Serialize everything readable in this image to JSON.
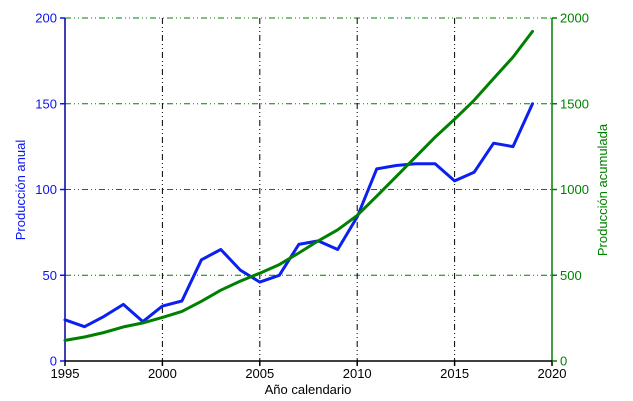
{
  "chart_data": {
    "type": "line",
    "x": [
      1995,
      1996,
      1997,
      1998,
      1999,
      2000,
      2001,
      2002,
      2003,
      2004,
      2005,
      2006,
      2007,
      2008,
      2009,
      2010,
      2011,
      2012,
      2013,
      2014,
      2015,
      2016,
      2017,
      2018,
      2019
    ],
    "series": [
      {
        "name": "Producción anual",
        "axis": "left",
        "color": "#0b20f0",
        "width": 3,
        "values": [
          24,
          20,
          26,
          33,
          23,
          32,
          35,
          59,
          65,
          53,
          46,
          50,
          68,
          70,
          65,
          84,
          112,
          114,
          115,
          115,
          105,
          110,
          127,
          125,
          150
        ]
      },
      {
        "name": "Producción acumulada",
        "axis": "right",
        "color": "#008000",
        "width": 3,
        "values": [
          120,
          140,
          166,
          199,
          222,
          254,
          289,
          348,
          413,
          466,
          512,
          562,
          630,
          700,
          765,
          849,
          961,
          1075,
          1190,
          1305,
          1410,
          1520,
          1647,
          1772,
          1922
        ]
      }
    ],
    "x_axis": {
      "label": "Año calendario",
      "min": 1995,
      "max": 2020,
      "ticks": [
        1995,
        2000,
        2005,
        2010,
        2015,
        2020
      ],
      "color": "#000000"
    },
    "left_axis": {
      "label": "Producción anual",
      "min": 0,
      "max": 200,
      "ticks": [
        0,
        50,
        100,
        150,
        200
      ],
      "color": "#0a14f0",
      "axis_line_color": "#000099"
    },
    "right_axis": {
      "label": "Producción acumulada",
      "min": 0,
      "max": 2000,
      "ticks": [
        0,
        500,
        1000,
        1500,
        2000
      ],
      "color": "#008000",
      "axis_line_color": "#008000"
    },
    "grid": {
      "h_values": [
        50,
        100,
        150,
        200
      ],
      "v_values": [
        2000,
        2005,
        2010,
        2015
      ],
      "h_color": "#008000",
      "v_color": "#000000",
      "dash": "6,3,1,3,1,3"
    },
    "legend": "none",
    "background": "#ffffff"
  }
}
